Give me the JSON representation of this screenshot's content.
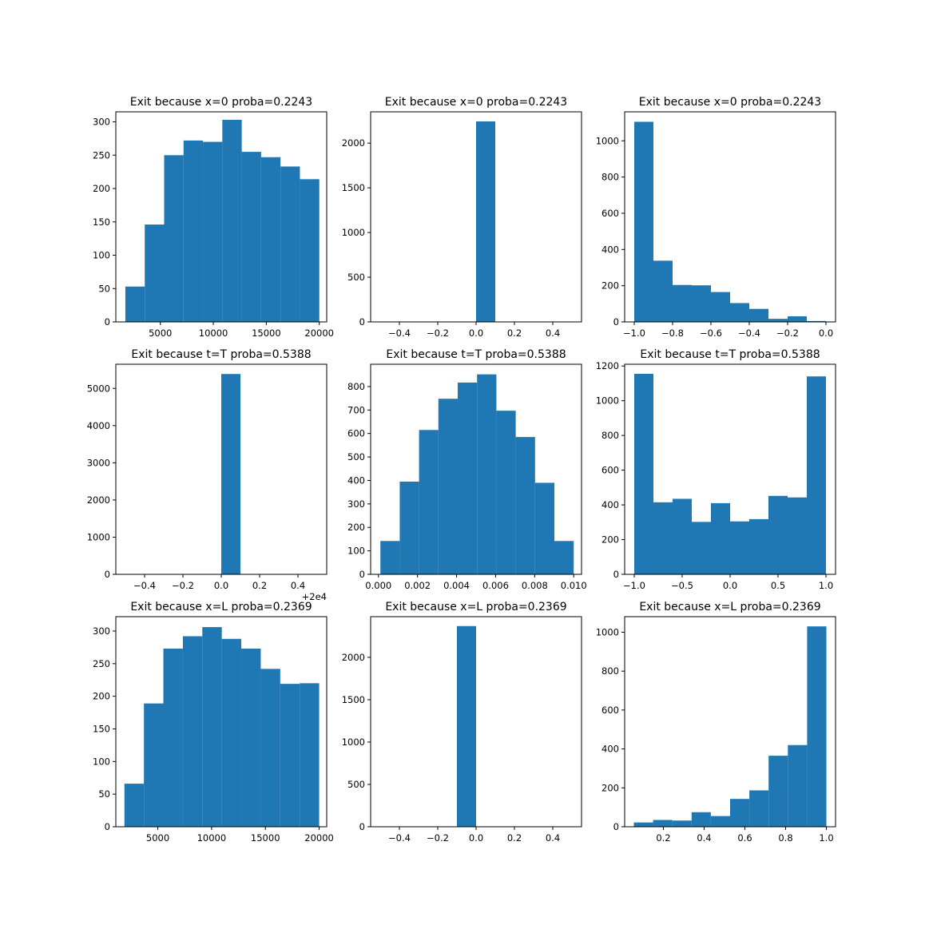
{
  "colors": {
    "bar": "#1f77b4",
    "frame": "#000000",
    "background": "#ffffff"
  },
  "chart_data": [
    {
      "type": "bar",
      "title": "Exit because x=0 proba=0.2243",
      "xlabel": "",
      "ylabel": "",
      "xlim": [
        800,
        20700
      ],
      "ylim": [
        0,
        315
      ],
      "edges": [
        1700,
        3530,
        5360,
        7190,
        9020,
        10850,
        12680,
        14510,
        16340,
        18170,
        20000
      ],
      "values": [
        53,
        146,
        250,
        272,
        270,
        303,
        255,
        247,
        233,
        214
      ],
      "xticks": [
        5000,
        10000,
        15000,
        20000
      ],
      "xtick_labels": [
        "5000",
        "10000",
        "15000",
        "20000"
      ],
      "yticks": [
        0,
        50,
        100,
        150,
        200,
        250,
        300
      ],
      "ytick_labels": [
        "0",
        "50",
        "100",
        "150",
        "200",
        "250",
        "300"
      ],
      "offset_label": ""
    },
    {
      "type": "bar",
      "title": "Exit because x=0 proba=0.2243",
      "xlabel": "",
      "ylabel": "",
      "xlim": [
        -0.55,
        0.55
      ],
      "ylim": [
        0,
        2350
      ],
      "edges": [
        -0.5,
        -0.4,
        -0.3,
        -0.2,
        -0.1,
        0.0,
        0.1,
        0.2,
        0.3,
        0.4,
        0.5
      ],
      "values": [
        0,
        0,
        0,
        0,
        0,
        2243,
        0,
        0,
        0,
        0
      ],
      "xticks": [
        -0.4,
        -0.2,
        0.0,
        0.2,
        0.4
      ],
      "xtick_labels": [
        "−0.4",
        "−0.2",
        "0.0",
        "0.2",
        "0.4"
      ],
      "yticks": [
        0,
        500,
        1000,
        1500,
        2000
      ],
      "ytick_labels": [
        "0",
        "500",
        "1000",
        "1500",
        "2000"
      ],
      "offset_label": ""
    },
    {
      "type": "bar",
      "title": "Exit because x=0 proba=0.2243",
      "xlabel": "",
      "ylabel": "",
      "xlim": [
        -1.05,
        0.05
      ],
      "ylim": [
        0,
        1160
      ],
      "edges": [
        -1.0,
        -0.9,
        -0.8,
        -0.7,
        -0.6,
        -0.5,
        -0.4,
        -0.3,
        -0.2,
        -0.1,
        0.0
      ],
      "values": [
        1105,
        338,
        204,
        202,
        165,
        104,
        72,
        17,
        31,
        5
      ],
      "xticks": [
        -1.0,
        -0.8,
        -0.6,
        -0.4,
        -0.2,
        0.0
      ],
      "xtick_labels": [
        "−1.0",
        "−0.8",
        "−0.6",
        "−0.4",
        "−0.2",
        "0.0"
      ],
      "yticks": [
        0,
        200,
        400,
        600,
        800,
        1000
      ],
      "ytick_labels": [
        "0",
        "200",
        "400",
        "600",
        "800",
        "1000"
      ],
      "offset_label": ""
    },
    {
      "type": "bar",
      "title": "Exit because t=T proba=0.5388",
      "xlabel": "",
      "ylabel": "",
      "xlim": [
        -0.55,
        0.55
      ],
      "ylim": [
        0,
        5650
      ],
      "edges": [
        -0.5,
        -0.4,
        -0.3,
        -0.2,
        -0.1,
        0.0,
        0.1,
        0.2,
        0.3,
        0.4,
        0.5
      ],
      "values": [
        0,
        0,
        0,
        0,
        0,
        5388,
        0,
        0,
        0,
        0
      ],
      "xticks": [
        -0.4,
        -0.2,
        0.0,
        0.2,
        0.4
      ],
      "xtick_labels": [
        "−0.4",
        "−0.2",
        "0.0",
        "0.2",
        "0.4"
      ],
      "yticks": [
        0,
        1000,
        2000,
        3000,
        4000,
        5000
      ],
      "ytick_labels": [
        "0",
        "1000",
        "2000",
        "3000",
        "4000",
        "5000"
      ],
      "offset_label": "+2e4"
    },
    {
      "type": "bar",
      "title": "Exit because t=T proba=0.5388",
      "xlabel": "",
      "ylabel": "",
      "xlim": [
        -0.0004,
        0.0104
      ],
      "ylim": [
        0,
        895
      ],
      "edges": [
        0.0001,
        0.00109,
        0.00208,
        0.00307,
        0.00406,
        0.00505,
        0.00604,
        0.00703,
        0.00802,
        0.00901,
        0.01
      ],
      "values": [
        142,
        395,
        615,
        748,
        817,
        852,
        697,
        585,
        390,
        142
      ],
      "xticks": [
        0.0,
        0.002,
        0.004,
        0.006,
        0.008,
        0.01
      ],
      "xtick_labels": [
        "0.000",
        "0.002",
        "0.004",
        "0.006",
        "0.008",
        "0.010"
      ],
      "yticks": [
        0,
        100,
        200,
        300,
        400,
        500,
        600,
        700,
        800
      ],
      "ytick_labels": [
        "0",
        "100",
        "200",
        "300",
        "400",
        "500",
        "600",
        "700",
        "800"
      ],
      "offset_label": ""
    },
    {
      "type": "bar",
      "title": "Exit because t=T proba=0.5388",
      "xlabel": "",
      "ylabel": "",
      "xlim": [
        -1.1,
        1.1
      ],
      "ylim": [
        0,
        1210
      ],
      "edges": [
        -1.0,
        -0.8,
        -0.6,
        -0.4,
        -0.2,
        0.0,
        0.2,
        0.4,
        0.6,
        0.8,
        1.0
      ],
      "values": [
        1155,
        415,
        435,
        302,
        410,
        305,
        318,
        452,
        443,
        1140
      ],
      "xticks": [
        -1.0,
        -0.5,
        0.0,
        0.5,
        1.0
      ],
      "xtick_labels": [
        "−1.0",
        "−0.5",
        "0.0",
        "0.5",
        "1.0"
      ],
      "yticks": [
        0,
        200,
        400,
        600,
        800,
        1000,
        1200
      ],
      "ytick_labels": [
        "0",
        "200",
        "400",
        "600",
        "800",
        "1000",
        "1200"
      ],
      "offset_label": ""
    },
    {
      "type": "bar",
      "title": "Exit because x=L proba=0.2369",
      "xlabel": "",
      "ylabel": "",
      "xlim": [
        1100,
        20700
      ],
      "ylim": [
        0,
        322
      ],
      "edges": [
        1900,
        3710,
        5520,
        7330,
        9140,
        10950,
        12760,
        14570,
        16380,
        18190,
        20000
      ],
      "values": [
        66,
        189,
        273,
        292,
        306,
        288,
        273,
        242,
        219,
        220
      ],
      "xticks": [
        5000,
        10000,
        15000,
        20000
      ],
      "xtick_labels": [
        "5000",
        "10000",
        "15000",
        "20000"
      ],
      "yticks": [
        0,
        50,
        100,
        150,
        200,
        250,
        300
      ],
      "ytick_labels": [
        "0",
        "50",
        "100",
        "150",
        "200",
        "250",
        "300"
      ],
      "offset_label": ""
    },
    {
      "type": "bar",
      "title": "Exit because x=L proba=0.2369",
      "xlabel": "",
      "ylabel": "",
      "xlim": [
        -0.55,
        0.55
      ],
      "ylim": [
        0,
        2480
      ],
      "edges": [
        -0.5,
        -0.4,
        -0.3,
        -0.2,
        -0.1,
        0.0,
        0.1,
        0.2,
        0.3,
        0.4,
        0.5
      ],
      "values": [
        0,
        0,
        0,
        0,
        2369,
        0,
        0,
        0,
        0,
        0
      ],
      "xticks": [
        -0.4,
        -0.2,
        0.0,
        0.2,
        0.4
      ],
      "xtick_labels": [
        "−0.4",
        "−0.2",
        "0.0",
        "0.2",
        "0.4"
      ],
      "yticks": [
        0,
        500,
        1000,
        1500,
        2000
      ],
      "ytick_labels": [
        "0",
        "500",
        "1000",
        "1500",
        "2000"
      ],
      "offset_label": ""
    },
    {
      "type": "bar",
      "title": "Exit because x=L proba=0.2369",
      "xlabel": "",
      "ylabel": "",
      "xlim": [
        0.01,
        1.045
      ],
      "ylim": [
        0,
        1080
      ],
      "edges": [
        0.055,
        0.1495,
        0.244,
        0.3385,
        0.433,
        0.5275,
        0.622,
        0.7165,
        0.811,
        0.9055,
        1.0
      ],
      "values": [
        22,
        35,
        32,
        75,
        55,
        143,
        187,
        365,
        420,
        1030
      ],
      "xticks": [
        0.2,
        0.4,
        0.6,
        0.8,
        1.0
      ],
      "xtick_labels": [
        "0.2",
        "0.4",
        "0.6",
        "0.8",
        "1.0"
      ],
      "yticks": [
        0,
        200,
        400,
        600,
        800,
        1000
      ],
      "ytick_labels": [
        "0",
        "200",
        "400",
        "600",
        "800",
        "1000"
      ],
      "offset_label": ""
    }
  ]
}
